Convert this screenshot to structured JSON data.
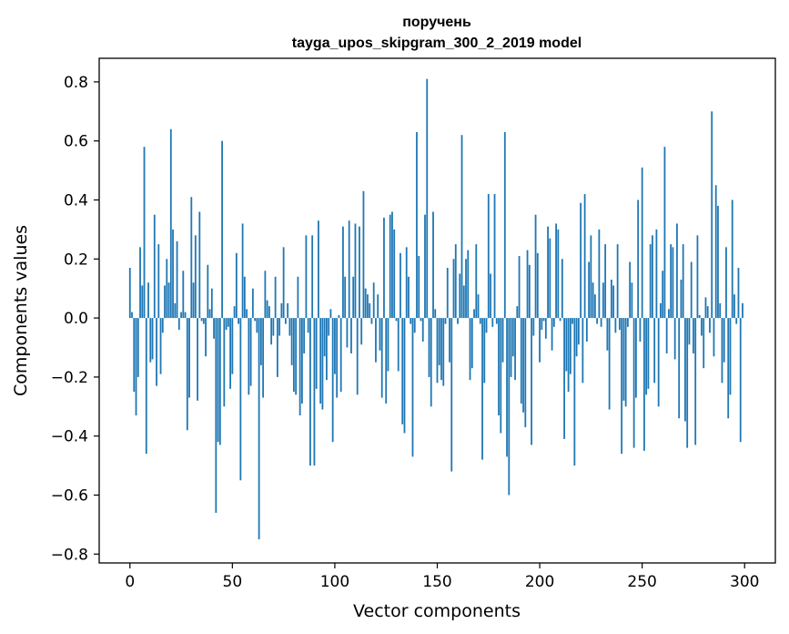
{
  "chart_data": {
    "type": "bar",
    "title": "поручень",
    "subtitle": "tayga_upos_skipgram_300_2_2019 model",
    "xlabel": "Vector components",
    "ylabel": "Components values",
    "xlim": [
      -15,
      315
    ],
    "ylim": [
      -0.83,
      0.88
    ],
    "xticks": [
      0,
      50,
      100,
      150,
      200,
      250,
      300
    ],
    "yticks": [
      -0.8,
      -0.6,
      -0.4,
      -0.2,
      0.0,
      0.2,
      0.4,
      0.6,
      0.8
    ],
    "ytick_labels": [
      "−0.8",
      "−0.6",
      "−0.4",
      "−0.2",
      "0.0",
      "0.2",
      "0.4",
      "0.6",
      "0.8"
    ],
    "grid": false,
    "bar_color": "#1f77b4",
    "series": [
      {
        "values": [
          0.17,
          0.02,
          -0.25,
          -0.33,
          -0.2,
          0.24,
          0.11,
          0.58,
          -0.46,
          0.12,
          -0.15,
          -0.14,
          0.35,
          -0.23,
          0.25,
          -0.19,
          -0.05,
          0.11,
          0.2,
          0.12,
          0.64,
          0.3,
          0.05,
          0.26,
          -0.04,
          0.02,
          0.16,
          0.02,
          -0.38,
          -0.27,
          0.41,
          0.12,
          0.28,
          -0.28,
          0.36,
          -0.01,
          -0.02,
          -0.13,
          0.18,
          0.03,
          0.1,
          -0.07,
          -0.66,
          -0.42,
          -0.43,
          0.6,
          -0.3,
          -0.04,
          -0.03,
          -0.24,
          -0.19,
          0.04,
          0.22,
          -0.02,
          -0.55,
          0.32,
          0.14,
          0.03,
          -0.26,
          -0.23,
          0.1,
          -0.01,
          -0.05,
          -0.75,
          -0.16,
          -0.27,
          0.16,
          0.06,
          0.04,
          -0.09,
          -0.06,
          0.14,
          -0.2,
          -0.06,
          0.05,
          0.24,
          -0.02,
          0.05,
          -0.06,
          -0.16,
          -0.25,
          -0.26,
          0.14,
          -0.33,
          -0.29,
          -0.12,
          0.28,
          -0.05,
          -0.5,
          0.28,
          -0.5,
          -0.24,
          0.33,
          -0.29,
          -0.31,
          -0.13,
          -0.21,
          -0.06,
          0.03,
          -0.42,
          -0.19,
          -0.27,
          0.01,
          -0.25,
          0.31,
          0.14,
          -0.1,
          0.33,
          -0.12,
          0.14,
          0.32,
          -0.26,
          0.31,
          -0.09,
          0.43,
          0.1,
          0.08,
          0.05,
          -0.02,
          0.12,
          -0.15,
          0.08,
          -0.11,
          -0.27,
          0.34,
          -0.29,
          -0.18,
          0.35,
          0.36,
          0.3,
          -0.01,
          -0.18,
          0.22,
          -0.36,
          -0.39,
          0.24,
          0.14,
          -0.02,
          -0.47,
          -0.05,
          0.63,
          0.21,
          -0.01,
          -0.08,
          0.35,
          0.81,
          -0.2,
          -0.3,
          0.36,
          0.03,
          -0.22,
          -0.16,
          -0.21,
          -0.23,
          -0.02,
          0.17,
          -0.15,
          -0.52,
          0.2,
          0.25,
          -0.02,
          0.15,
          0.62,
          0.11,
          0.2,
          0.23,
          -0.21,
          -0.17,
          0.03,
          0.25,
          0.08,
          -0.02,
          -0.48,
          -0.22,
          -0.05,
          0.42,
          0.15,
          -0.03,
          0.42,
          -0.02,
          -0.33,
          -0.39,
          -0.15,
          0.63,
          -0.47,
          -0.6,
          -0.2,
          -0.13,
          -0.21,
          0.04,
          0.21,
          -0.29,
          -0.32,
          -0.37,
          0.23,
          0.18,
          -0.43,
          -0.06,
          0.35,
          0.22,
          -0.15,
          -0.04,
          -0.01,
          -0.07,
          0.31,
          0.27,
          -0.11,
          -0.03,
          0.32,
          0.3,
          -0.01,
          0.2,
          -0.41,
          -0.18,
          -0.25,
          -0.19,
          -0.02,
          -0.5,
          -0.13,
          -0.09,
          0.39,
          -0.22,
          0.42,
          -0.08,
          0.19,
          0.28,
          0.12,
          0.08,
          -0.02,
          0.3,
          -0.03,
          0.12,
          0.25,
          -0.11,
          -0.31,
          0.13,
          0.11,
          -0.05,
          0.25,
          -0.04,
          -0.46,
          -0.28,
          -0.3,
          -0.03,
          0.19,
          0.12,
          -0.44,
          -0.27,
          0.4,
          -0.08,
          0.51,
          -0.45,
          -0.26,
          -0.24,
          0.25,
          0.28,
          -0.22,
          0.3,
          -0.3,
          0.05,
          0.16,
          0.58,
          -0.12,
          0.03,
          0.25,
          0.24,
          -0.14,
          0.32,
          -0.34,
          0.13,
          0.25,
          -0.35,
          -0.44,
          -0.09,
          0.19,
          -0.12,
          -0.43,
          0.28,
          0.01,
          -0.06,
          -0.17,
          0.07,
          0.04,
          -0.05,
          0.7,
          -0.13,
          0.45,
          0.38,
          0.05,
          -0.22,
          -0.15,
          0.24,
          -0.34,
          -0.26,
          0.4,
          0.08,
          -0.02,
          0.17,
          -0.42,
          0.05
        ]
      }
    ]
  }
}
